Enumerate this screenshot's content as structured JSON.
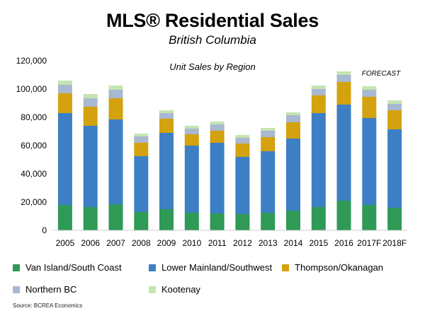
{
  "chart_data": {
    "type": "bar",
    "stacked": true,
    "title": "MLS® Residential Sales",
    "subtitle": "British Columbia",
    "inner_title": "Unit Sales by Region",
    "annotation": "FORECAST",
    "categories": [
      "2005",
      "2006",
      "2007",
      "2008",
      "2009",
      "2010",
      "2011",
      "2012",
      "2013",
      "2014",
      "2015",
      "2016",
      "2017F",
      "2018F"
    ],
    "ylim": [
      0,
      120000
    ],
    "yticks": [
      0,
      20000,
      40000,
      60000,
      80000,
      100000,
      120000
    ],
    "ytick_labels": [
      "0",
      "20,000",
      "40,000",
      "60,000",
      "80,000",
      "100,000",
      "120,000"
    ],
    "grid": false,
    "legend_position": "bottom",
    "series": [
      {
        "name": "Van Island/South Coast",
        "color": "#2e9a55",
        "values": [
          18000,
          16500,
          18500,
          13000,
          15000,
          12500,
          12000,
          11500,
          12500,
          14000,
          16500,
          21000,
          18000,
          16000
        ]
      },
      {
        "name": "Lower Mainland/Southwest",
        "color": "#3d7fc4",
        "values": [
          65000,
          57500,
          60000,
          39500,
          54000,
          47500,
          50000,
          40500,
          43500,
          51000,
          66500,
          68000,
          61500,
          55500
        ]
      },
      {
        "name": "Thompson/Okanagan",
        "color": "#d4a20e",
        "values": [
          14000,
          13500,
          15000,
          9500,
          10000,
          8000,
          8500,
          9500,
          10000,
          11500,
          12500,
          16000,
          15000,
          13500
        ]
      },
      {
        "name": "Northern BC",
        "color": "#a9b8d1",
        "values": [
          6000,
          6000,
          6000,
          4500,
          4000,
          4000,
          4500,
          4000,
          4500,
          5000,
          4500,
          5000,
          5000,
          4500
        ]
      },
      {
        "name": "Kootenay",
        "color": "#c5e5b0",
        "values": [
          3000,
          3000,
          3000,
          2000,
          2000,
          2000,
          2000,
          2000,
          2000,
          2000,
          2500,
          2500,
          2500,
          2500
        ]
      }
    ]
  },
  "source": "Source: BCREA Economics"
}
